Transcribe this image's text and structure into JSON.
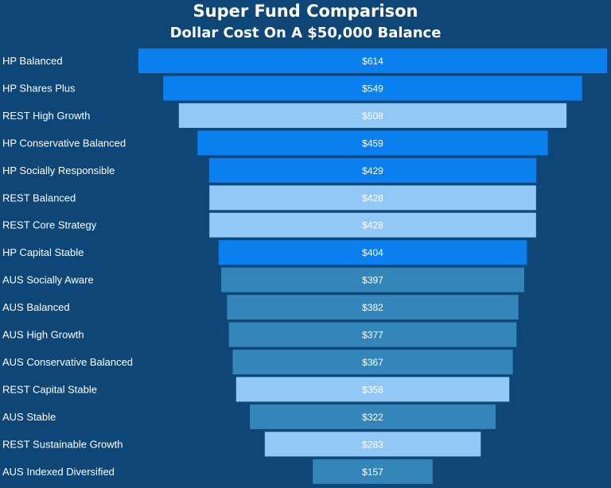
{
  "chart_data": {
    "type": "bar",
    "subtype": "funnel",
    "title": "Super Fund Comparison",
    "subtitle": "Dollar Cost On A $50,000 Balance",
    "value_prefix": "$",
    "categories": [
      "HP Balanced",
      "HP Shares Plus",
      "REST High Growth",
      "HP Conservative Balanced",
      "HP Socially Responsible",
      "REST Balanced",
      "REST Core Strategy",
      "HP Capital Stable",
      "AUS Socially Aware",
      "AUS Balanced",
      "AUS High Growth",
      "AUS Conservative Balanced",
      "REST Capital Stable",
      "AUS Stable",
      "REST Sustainable Growth",
      "AUS Indexed Diversified"
    ],
    "values": [
      614,
      549,
      508,
      459,
      429,
      428,
      428,
      404,
      397,
      382,
      377,
      367,
      358,
      322,
      283,
      157
    ],
    "groups": [
      "HP",
      "HP",
      "REST",
      "HP",
      "HP",
      "REST",
      "REST",
      "HP",
      "AUS",
      "AUS",
      "AUS",
      "AUS",
      "REST",
      "AUS",
      "REST",
      "AUS"
    ],
    "group_colors": {
      "HP": "#0a7ff0",
      "REST": "#92c8f5",
      "AUS": "#3485b9"
    },
    "value_labels": [
      "$614",
      "$549",
      "$508",
      "$459",
      "$429",
      "$428",
      "$428",
      "$404",
      "$397",
      "$382",
      "$377",
      "$367",
      "$358",
      "$322",
      "$283",
      "$157"
    ]
  },
  "colors": {
    "background": "#0d4677"
  }
}
